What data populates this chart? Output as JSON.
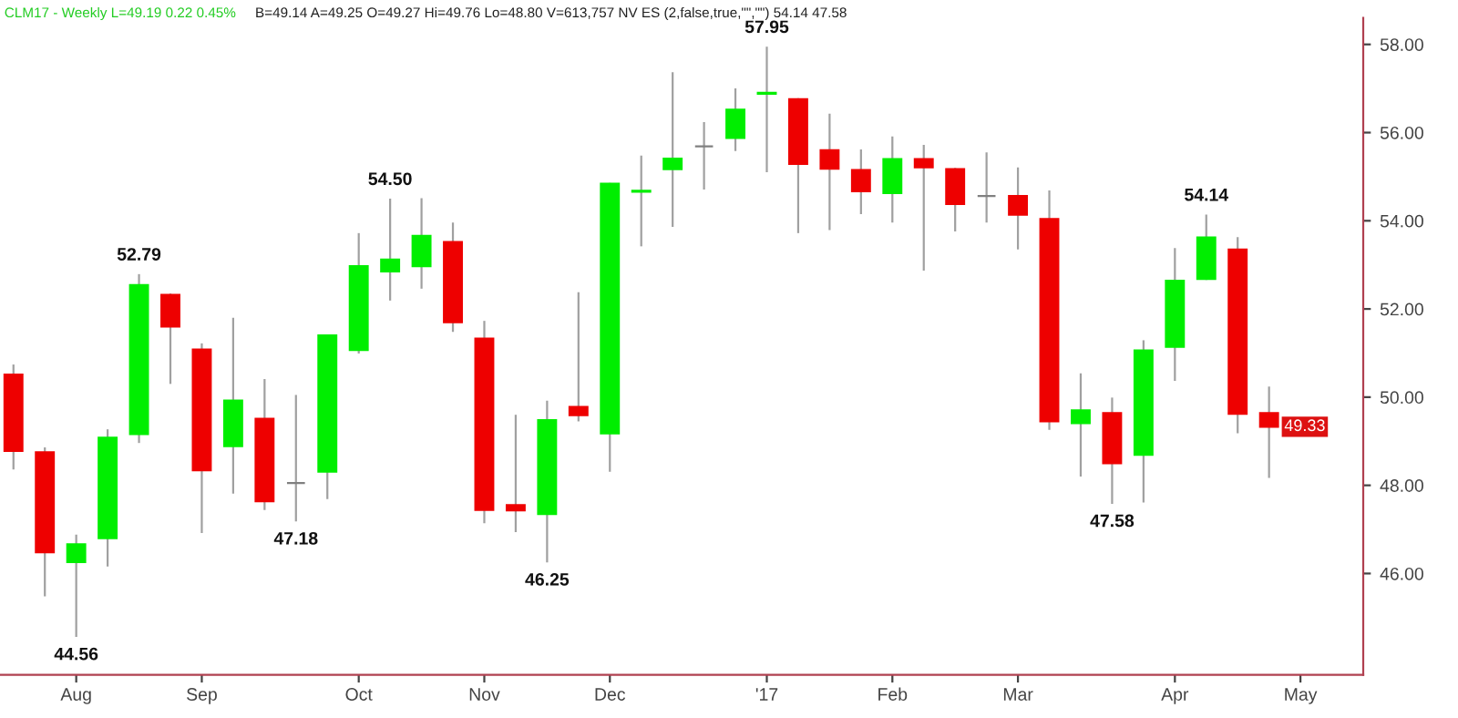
{
  "chart_data": {
    "type": "candlestick",
    "title": "CLM17 - Weekly L=49.19 0.22 0.45%",
    "subtitle": "B=49.14 A=49.25 O=49.27 Hi=49.76 Lo=48.80 V=613,757 NV ES (2,false,true,\"\",\"\") 54.14 47.58",
    "x": [
      "2016-07-22",
      "2016-07-29",
      "2016-08-05",
      "2016-08-12",
      "2016-08-19",
      "2016-08-26",
      "2016-09-02",
      "2016-09-09",
      "2016-09-16",
      "2016-09-23",
      "2016-09-30",
      "2016-10-07",
      "2016-10-14",
      "2016-10-21",
      "2016-10-28",
      "2016-11-04",
      "2016-11-11",
      "2016-11-18",
      "2016-11-25",
      "2016-12-02",
      "2016-12-09",
      "2016-12-16",
      "2016-12-23",
      "2016-12-30",
      "2017-01-06",
      "2017-01-13",
      "2017-01-20",
      "2017-01-27",
      "2017-02-03",
      "2017-02-10",
      "2017-02-17",
      "2017-02-24",
      "2017-03-03",
      "2017-03-10",
      "2017-03-17",
      "2017-03-24",
      "2017-03-31",
      "2017-04-07",
      "2017-04-14",
      "2017-04-21",
      "2017-04-28"
    ],
    "ohlc": [
      [
        50.51,
        50.74,
        48.36,
        48.78
      ],
      [
        48.75,
        48.86,
        45.48,
        46.48
      ],
      [
        46.26,
        46.88,
        44.56,
        46.66
      ],
      [
        46.8,
        49.27,
        46.16,
        49.08
      ],
      [
        49.16,
        52.79,
        48.96,
        52.54
      ],
      [
        52.32,
        52.35,
        50.3,
        51.6
      ],
      [
        51.08,
        51.22,
        46.92,
        48.34
      ],
      [
        48.89,
        51.8,
        47.81,
        49.92
      ],
      [
        49.51,
        50.41,
        47.44,
        47.64
      ],
      [
        48.05,
        50.05,
        47.18,
        48.05
      ],
      [
        48.31,
        51.42,
        47.69,
        51.4
      ],
      [
        51.07,
        53.72,
        50.99,
        52.97
      ],
      [
        52.85,
        54.5,
        52.19,
        53.12
      ],
      [
        52.97,
        54.51,
        52.46,
        53.66
      ],
      [
        53.52,
        53.96,
        51.48,
        51.7
      ],
      [
        51.33,
        51.73,
        47.14,
        47.44
      ],
      [
        47.55,
        49.6,
        46.94,
        47.43
      ],
      [
        47.35,
        49.92,
        46.25,
        49.48
      ],
      [
        49.78,
        52.38,
        49.45,
        49.59
      ],
      [
        49.18,
        54.86,
        48.31,
        54.84
      ],
      [
        54.66,
        55.48,
        53.42,
        54.68
      ],
      [
        55.17,
        57.37,
        53.86,
        55.41
      ],
      [
        55.69,
        56.24,
        54.71,
        55.69
      ],
      [
        55.88,
        57.0,
        55.58,
        56.52
      ],
      [
        56.88,
        57.95,
        55.1,
        56.9
      ],
      [
        56.76,
        56.78,
        53.72,
        55.29
      ],
      [
        55.6,
        56.43,
        53.79,
        55.18
      ],
      [
        55.15,
        55.62,
        54.15,
        54.67
      ],
      [
        54.63,
        55.91,
        53.96,
        55.4
      ],
      [
        55.4,
        55.72,
        52.87,
        55.21
      ],
      [
        55.17,
        55.2,
        53.76,
        54.38
      ],
      [
        54.56,
        55.55,
        53.96,
        54.56
      ],
      [
        54.56,
        55.21,
        53.35,
        54.14
      ],
      [
        54.04,
        54.69,
        49.26,
        49.45
      ],
      [
        49.41,
        50.54,
        48.2,
        49.7
      ],
      [
        49.64,
        49.99,
        47.58,
        48.5
      ],
      [
        48.69,
        51.29,
        47.61,
        51.06
      ],
      [
        51.14,
        53.38,
        50.37,
        52.64
      ],
      [
        52.68,
        54.14,
        52.66,
        53.62
      ],
      [
        53.35,
        53.63,
        49.18,
        49.62
      ],
      [
        49.64,
        50.24,
        48.17,
        49.33
      ]
    ],
    "colors": [
      "#ee0000",
      "#ee0000",
      "#00ee00",
      "#00ee00",
      "#00ee00",
      "#ee0000",
      "#ee0000",
      "#00ee00",
      "#ee0000",
      "#808080",
      "#00ee00",
      "#00ee00",
      "#00ee00",
      "#00ee00",
      "#ee0000",
      "#ee0000",
      "#ee0000",
      "#00ee00",
      "#ee0000",
      "#00ee00",
      "#00ee00",
      "#00ee00",
      "#808080",
      "#00ee00",
      "#00ee00",
      "#ee0000",
      "#ee0000",
      "#ee0000",
      "#00ee00",
      "#ee0000",
      "#ee0000",
      "#808080",
      "#ee0000",
      "#ee0000",
      "#00ee00",
      "#ee0000",
      "#00ee00",
      "#00ee00",
      "#00ee00",
      "#ee0000",
      "#ee0000"
    ],
    "xlim": [
      "2016-07-19",
      "2017-05-19"
    ],
    "xticks": [
      {
        "value": "2016-08-05",
        "label": "Aug"
      },
      {
        "value": "2016-09-02",
        "label": "Sep"
      },
      {
        "value": "2016-10-07",
        "label": "Oct"
      },
      {
        "value": "2016-11-04",
        "label": "Nov"
      },
      {
        "value": "2016-12-02",
        "label": "Dec"
      },
      {
        "value": "2017-01-06",
        "label": "'17"
      },
      {
        "value": "2017-02-03",
        "label": "Feb"
      },
      {
        "value": "2017-03-03",
        "label": "Mar"
      },
      {
        "value": "2017-04-07",
        "label": "Apr"
      },
      {
        "value": "2017-05-05",
        "label": "May"
      }
    ],
    "ylim": [
      43.7,
      58.6
    ],
    "yticks": [
      {
        "value": 46,
        "label": "46.00"
      },
      {
        "value": 48,
        "label": "48.00"
      },
      {
        "value": 50,
        "label": "50.00"
      },
      {
        "value": 52,
        "label": "52.00"
      },
      {
        "value": 54,
        "label": "54.00"
      },
      {
        "value": 56,
        "label": "56.00"
      },
      {
        "value": 58,
        "label": "58.00"
      }
    ],
    "grid": false,
    "annotations": [
      {
        "text": "44.56",
        "x": "2016-08-05",
        "y": 44.56
      },
      {
        "text": "52.79",
        "x": "2016-08-19",
        "y": 52.79
      },
      {
        "text": "47.18",
        "x": "2016-09-23",
        "y": 47.18
      },
      {
        "text": "54.50",
        "x": "2016-10-14",
        "y": 54.5
      },
      {
        "text": "46.25",
        "x": "2016-11-18",
        "y": 46.25
      },
      {
        "text": "57.95",
        "x": "2017-01-06",
        "y": 57.95
      },
      {
        "text": "47.58",
        "x": "2017-03-24",
        "y": 47.58
      },
      {
        "text": "54.14",
        "x": "2017-04-14",
        "y": 54.14
      },
      {
        "text": "49.33",
        "x": "2017-04-28",
        "y": 49.33
      }
    ]
  }
}
